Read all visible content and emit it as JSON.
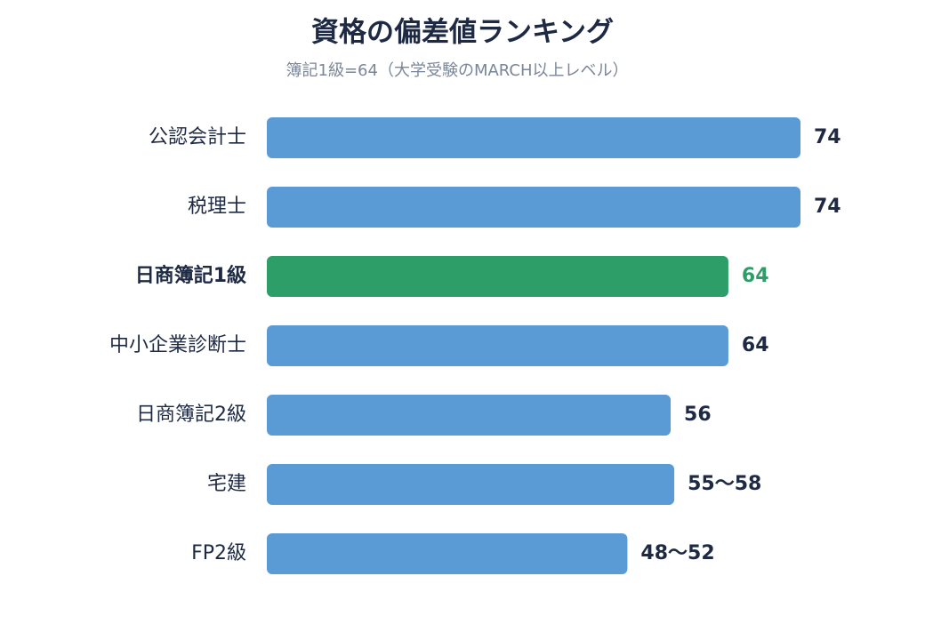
{
  "chart_data": {
    "type": "bar",
    "orientation": "horizontal",
    "title": "資格の偏差値ランキング",
    "subtitle": "簿記1級=64（大学受験のMARCH以上レベル）",
    "categories": [
      "公認会計士",
      "税理士",
      "日商簿記1級",
      "中小企業診断士",
      "日商簿記2級",
      "宅建",
      "FP2級"
    ],
    "values": [
      74,
      74,
      64,
      64,
      56,
      56.5,
      50
    ],
    "value_labels": [
      "74",
      "74",
      "64",
      "64",
      "56",
      "55〜58",
      "48〜52"
    ],
    "color": "#5b9bd5",
    "colors": [
      "#5b9bd5",
      "#5b9bd5",
      "#2e9e69",
      "#5b9bd5",
      "#5b9bd5",
      "#5b9bd5",
      "#5b9bd5"
    ]
  }
}
